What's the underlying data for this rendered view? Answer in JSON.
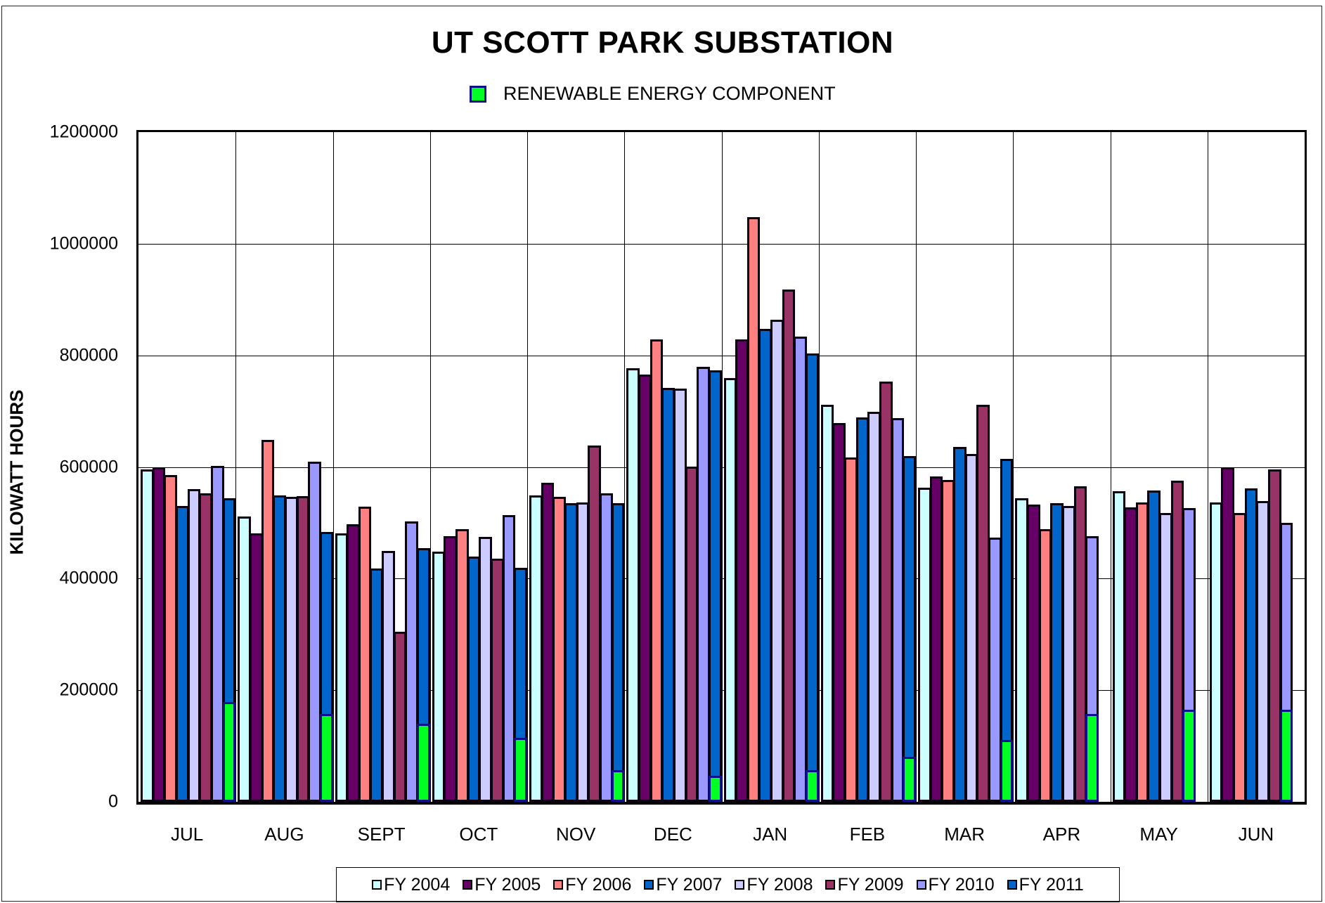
{
  "chart_data": {
    "type": "bar",
    "title": "UT SCOTT PARK SUBSTATION",
    "xlabel": "",
    "ylabel": "KILOWATT HOURS",
    "ylim": [
      0,
      1200000
    ],
    "yticks": [
      "0",
      "200000",
      "400000",
      "600000",
      "800000",
      "1000000",
      "1200000"
    ],
    "grid": true,
    "legend_position": "bottom",
    "categories": [
      "JUL",
      "AUG",
      "SEPT",
      "OCT",
      "NOV",
      "DEC",
      "JAN",
      "FEB",
      "MAR",
      "APR",
      "MAY",
      "JUN"
    ],
    "series": [
      {
        "name": "FY 2004",
        "color": "#ccffff",
        "values": [
          595000,
          511000,
          481000,
          448000,
          549000,
          777000,
          759000,
          711000,
          563000,
          544000,
          557000,
          537000
        ]
      },
      {
        "name": "FY 2005",
        "color": "#660066",
        "values": [
          600000,
          481000,
          497000,
          476000,
          572000,
          765000,
          828000,
          679000,
          583000,
          533000,
          527000,
          600000
        ]
      },
      {
        "name": "FY 2006",
        "color": "#ff8080",
        "values": [
          585000,
          648000,
          529000,
          488000,
          547000,
          828000,
          1048000,
          617000,
          577000,
          488000,
          536000,
          518000
        ]
      },
      {
        "name": "FY 2007",
        "color": "#0066cc",
        "values": [
          530000,
          549000,
          418000,
          440000,
          535000,
          742000,
          848000,
          689000,
          636000,
          535000,
          558000,
          561000
        ]
      },
      {
        "name": "FY 2008",
        "color": "#ccccff",
        "values": [
          560000,
          546000,
          449000,
          475000,
          536000,
          740000,
          864000,
          699000,
          623000,
          530000,
          518000,
          539000
        ]
      },
      {
        "name": "FY 2009",
        "color": "#993366",
        "values": [
          553000,
          548000,
          305000,
          436000,
          638000,
          601000,
          918000,
          753000,
          712000,
          566000,
          575000,
          596000
        ]
      },
      {
        "name": "FY 2010",
        "color": "#9999ff",
        "values": [
          602000,
          609000,
          502000,
          514000,
          553000,
          780000,
          833000,
          687000,
          473000,
          476000,
          526000,
          500000
        ]
      },
      {
        "name": "FY 2011",
        "color": "#0066cc",
        "values": [
          544000,
          484000,
          455000,
          419000,
          535000,
          773000,
          804000,
          620000,
          614000,
          null,
          null,
          null
        ]
      }
    ],
    "renewable": {
      "name": "RENEWABLE ENERGY COMPONENT",
      "color": "#00ff22",
      "values": [
        179000,
        158000,
        140000,
        114000,
        57000,
        47000,
        57000,
        81000,
        111000,
        158000,
        165000,
        165000
      ]
    }
  }
}
